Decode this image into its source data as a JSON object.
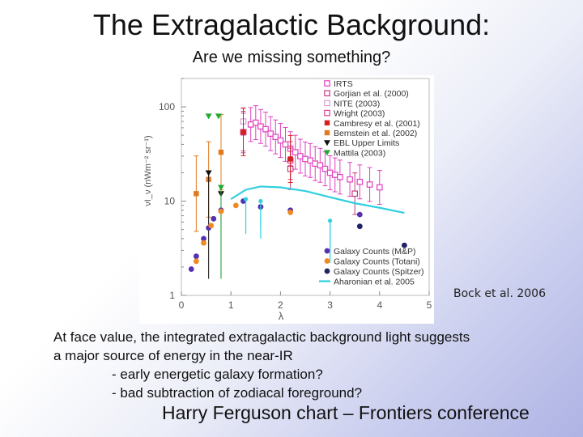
{
  "slide": {
    "title": "The Extragalactic Background:",
    "subtitle": "Are we missing something?",
    "credit": "Bock et al. 2006",
    "body_lines": [
      "At face value, the integrated extragalactic background light suggests",
      "a major source of energy in the near-IR",
      "- early energetic galaxy formation?",
      "- bad subtraction of zodiacal foreground?"
    ],
    "footer": "Harry Ferguson chart – Frontiers conference"
  },
  "chart_data": {
    "type": "scatter",
    "xlabel": "λ",
    "ylabel": "νI_ν (nWm⁻² sr⁻¹)",
    "xlim": [
      0,
      5
    ],
    "ylim": [
      1,
      200
    ],
    "yscale": "log",
    "x_ticks": [
      0,
      1,
      2,
      3,
      4,
      5
    ],
    "y_ticks": [
      1,
      10,
      100
    ],
    "legend_top": [
      {
        "label": "IRTS",
        "color": "#e040c0",
        "marker": "square-open"
      },
      {
        "label": "Gorjian et al. (2000)",
        "color": "#c04080",
        "marker": "square-open"
      },
      {
        "label": "NITE (2003)",
        "color": "#d8a0d0",
        "marker": "square-open"
      },
      {
        "label": "Wright (2003)",
        "color": "#e04090",
        "marker": "square-open"
      },
      {
        "label": "Cambresy et al. (2001)",
        "color": "#d42020",
        "marker": "square"
      },
      {
        "label": "Bernstein et al. (2002)",
        "color": "#e07a20",
        "marker": "square"
      },
      {
        "label": "EBL Upper Limits",
        "color": "#111111",
        "marker": "triangle-down"
      },
      {
        "label": "Mattila (2003)",
        "color": "#22aa33",
        "marker": "triangle-down"
      }
    ],
    "legend_bottom": [
      {
        "label": "Galaxy Counts (M&P)",
        "color": "#5530b0",
        "marker": "circle"
      },
      {
        "label": "Galaxy Counts (Totani)",
        "color": "#f08a20",
        "marker": "circle"
      },
      {
        "label": "Galaxy Counts (Spitzer)",
        "color": "#222266",
        "marker": "circle"
      },
      {
        "label": "Aharonian et al. 2005",
        "color": "#30d0e0",
        "marker": "line"
      }
    ],
    "series": [
      {
        "name": "IRTS",
        "color": "#e040c0",
        "marker": "square-open",
        "x": [
          1.4,
          1.5,
          1.6,
          1.7,
          1.8,
          1.9,
          2.0,
          2.1,
          2.2,
          2.3,
          2.4,
          2.5,
          2.6,
          2.7,
          2.8,
          2.9,
          3.0,
          3.1,
          3.2,
          3.4,
          3.6,
          3.8,
          4.0
        ],
        "y": [
          65,
          68,
          62,
          58,
          52,
          48,
          44,
          40,
          36,
          33,
          30,
          28,
          27,
          25,
          24,
          22,
          20,
          19,
          18,
          17,
          16,
          15,
          14
        ],
        "err": 0.18
      },
      {
        "name": "Gorjian et al. (2000)",
        "color": "#c04080",
        "marker": "square-open",
        "x": [
          1.25,
          2.2,
          3.5
        ],
        "y": [
          54,
          22,
          12
        ],
        "err": 0.22
      },
      {
        "name": "NITE (2003)",
        "color": "#d8a0d0",
        "marker": "square-open",
        "x": [
          1.25
        ],
        "y": [
          70
        ],
        "err": 0.15
      },
      {
        "name": "Wright (2003)",
        "color": "#e04090",
        "marker": "square-open",
        "x": [
          1.25,
          2.2
        ],
        "y": [
          54,
          27
        ],
        "err": 0.2
      },
      {
        "name": "Cambresy et al. (2001)",
        "color": "#d42020",
        "marker": "square",
        "x": [
          1.25,
          2.2
        ],
        "y": [
          54,
          28
        ],
        "err": 0.25
      },
      {
        "name": "Bernstein et al. (2002)",
        "color": "#e07a20",
        "marker": "square",
        "x": [
          0.3,
          0.55,
          0.8
        ],
        "y": [
          12,
          17,
          33
        ],
        "err": 0.4
      },
      {
        "name": "EBL Upper Limits",
        "color": "#111111",
        "marker": "triangle-down",
        "x": [
          0.55,
          0.8
        ],
        "y": [
          20,
          12
        ]
      },
      {
        "name": "Mattila (2003)",
        "color": "#22aa33",
        "marker": "triangle-down",
        "x": [
          0.55,
          0.75,
          0.8
        ],
        "y": [
          80,
          80,
          14
        ]
      },
      {
        "name": "Galaxy Counts (M&P)",
        "color": "#5530b0",
        "marker": "circle",
        "x": [
          0.2,
          0.3,
          0.45,
          0.55,
          0.65,
          0.8,
          1.25,
          1.6,
          2.2,
          3.6
        ],
        "y": [
          1.9,
          2.6,
          4.0,
          5.2,
          6.5,
          8.0,
          10.0,
          8.7,
          8.0,
          7.2
        ]
      },
      {
        "name": "Galaxy Counts (Totani)",
        "color": "#f08a20",
        "marker": "circle",
        "x": [
          0.3,
          0.45,
          0.6,
          0.8,
          1.1,
          2.2
        ],
        "y": [
          2.3,
          3.6,
          5.5,
          7.8,
          9.0,
          7.6
        ]
      },
      {
        "name": "Galaxy Counts (Spitzer)",
        "color": "#222266",
        "marker": "circle",
        "x": [
          3.6,
          4.5
        ],
        "y": [
          5.4,
          3.4
        ]
      },
      {
        "name": "Aharonian et al. 2005",
        "color": "#30d0e0",
        "marker": "line",
        "x": [
          1.0,
          1.3,
          1.6,
          2.0,
          2.5,
          3.0,
          3.5,
          4.0,
          4.5
        ],
        "y": [
          10.5,
          13.2,
          14.3,
          14.0,
          12.8,
          11.0,
          9.5,
          8.5,
          7.5
        ],
        "points": [
          {
            "x": 1.3,
            "y": 10.5,
            "errUp": 11,
            "errDown": 1.5
          },
          {
            "x": 1.6,
            "y": 10.0,
            "errUp": 4,
            "errDown": 1.2
          },
          {
            "x": 3.0,
            "y": 6.2,
            "errUp": 3,
            "errDown": 1
          }
        ]
      }
    ]
  }
}
